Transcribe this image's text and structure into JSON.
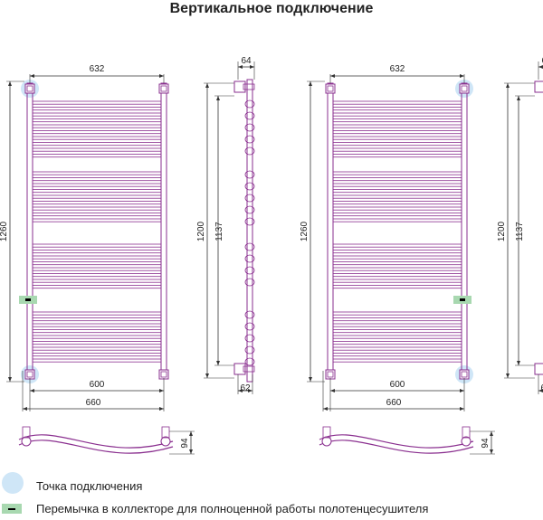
{
  "title": "Вертикальное подключение",
  "dimensions": {
    "width_top": "632",
    "height_total": "1260",
    "height_mid": "1200",
    "height_inner": "1137",
    "depth_top": "64",
    "axis_bottom": "600",
    "width_bottom": "660",
    "offset_bottom": "62",
    "depth_curve": "94"
  },
  "legend": {
    "connection_point": "Точка подключения",
    "bypass": "Перемычка в коллекторе для полноценной работы полотенцесушителя"
  },
  "colors": {
    "outline": "#8a2f8f",
    "dim_line": "#333333",
    "connection": "#cfe6f7",
    "bypass": "#a8d8b0"
  }
}
